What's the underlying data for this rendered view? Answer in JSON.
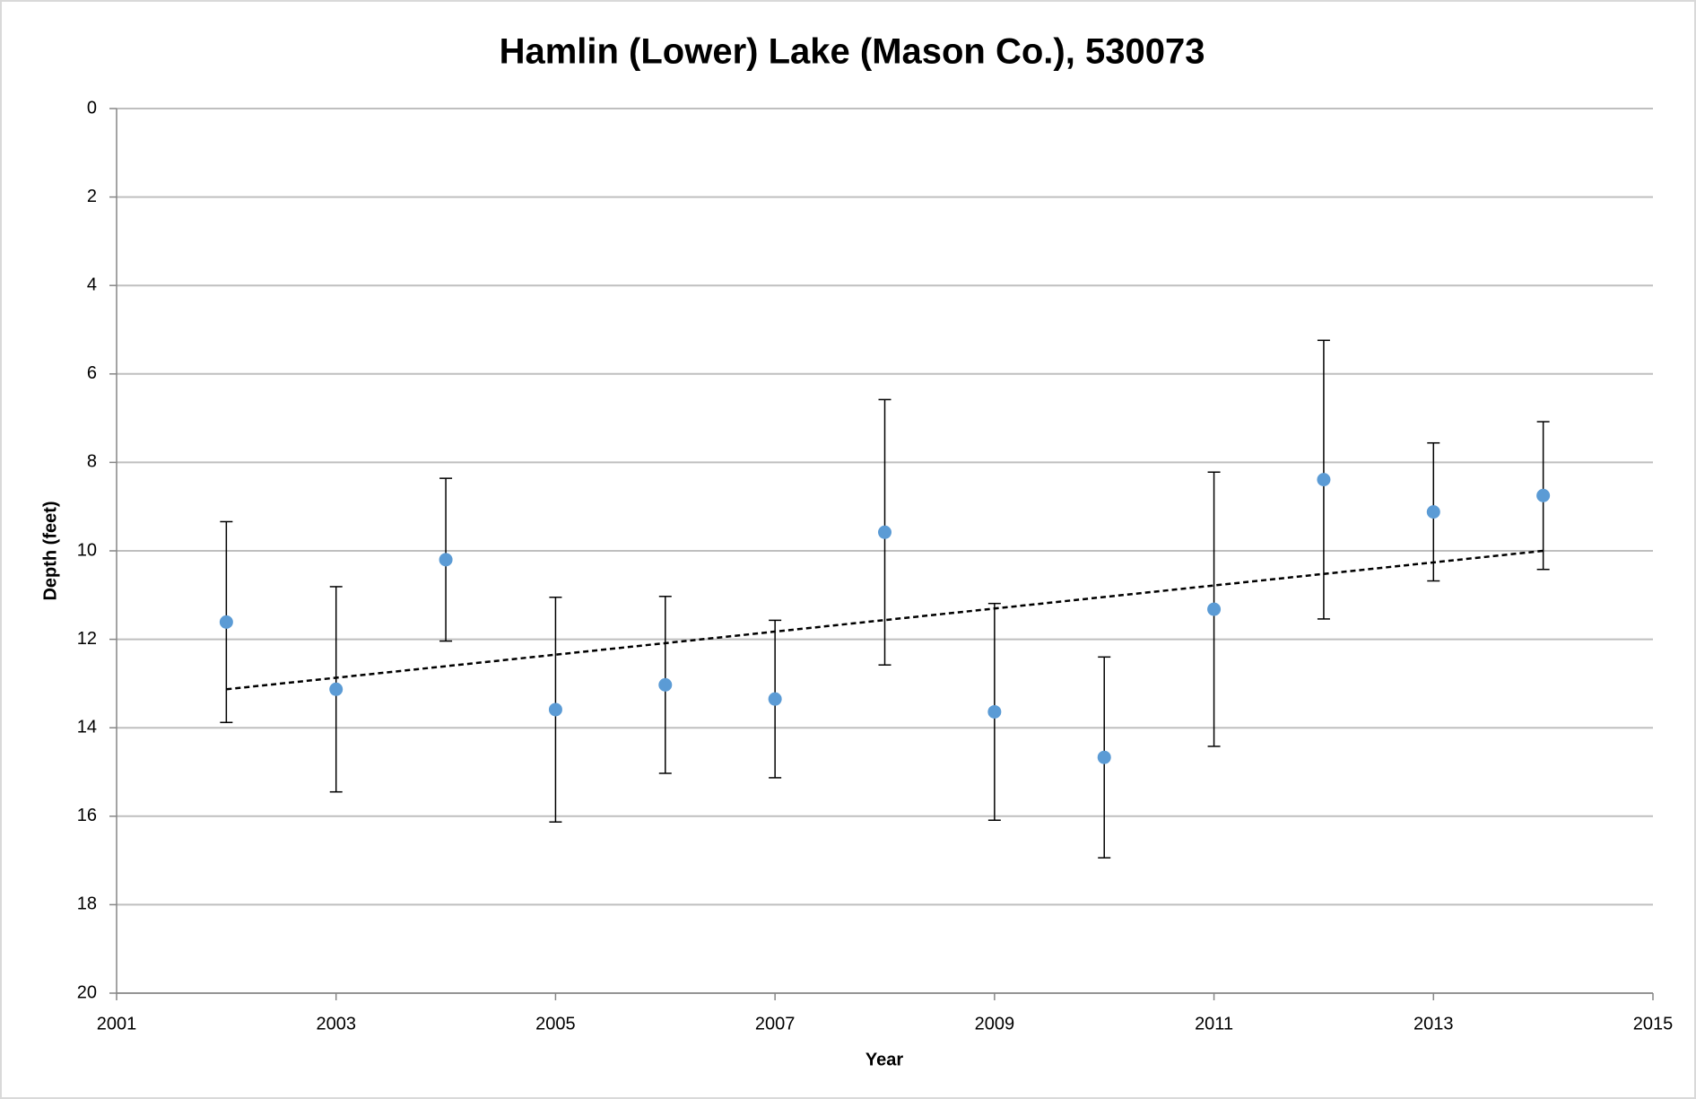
{
  "chart_data": {
    "type": "scatter",
    "title": "Hamlin (Lower) Lake (Mason Co.), 530073",
    "x_label": "Year",
    "y_label": "Depth (feet)",
    "xlim": [
      2001,
      2015
    ],
    "xticks": [
      2001,
      2003,
      2005,
      2007,
      2009,
      2011,
      2013,
      2015
    ],
    "ylim": [
      0,
      20
    ],
    "yticks": [
      0,
      2,
      4,
      6,
      8,
      10,
      12,
      14,
      16,
      18,
      20
    ],
    "y_inverted": true,
    "grid": true,
    "series": [
      {
        "color": "#5b9bd5",
        "x": [
          2002,
          2003,
          2004,
          2005,
          2006,
          2007,
          2008,
          2009,
          2010,
          2011,
          2012,
          2013,
          2014
        ],
        "values": [
          11.61,
          13.13,
          10.2,
          13.59,
          13.03,
          13.35,
          9.58,
          13.64,
          14.67,
          11.32,
          8.39,
          9.12,
          8.75
        ],
        "errors": [
          2.27,
          2.32,
          1.84,
          2.54,
          2.0,
          1.78,
          3.0,
          2.45,
          2.27,
          3.1,
          3.15,
          1.56,
          1.67
        ]
      }
    ],
    "trendline": {
      "color": "#000000",
      "x": [
        2002,
        2014
      ],
      "values": [
        13.13,
        10.0
      ]
    }
  }
}
